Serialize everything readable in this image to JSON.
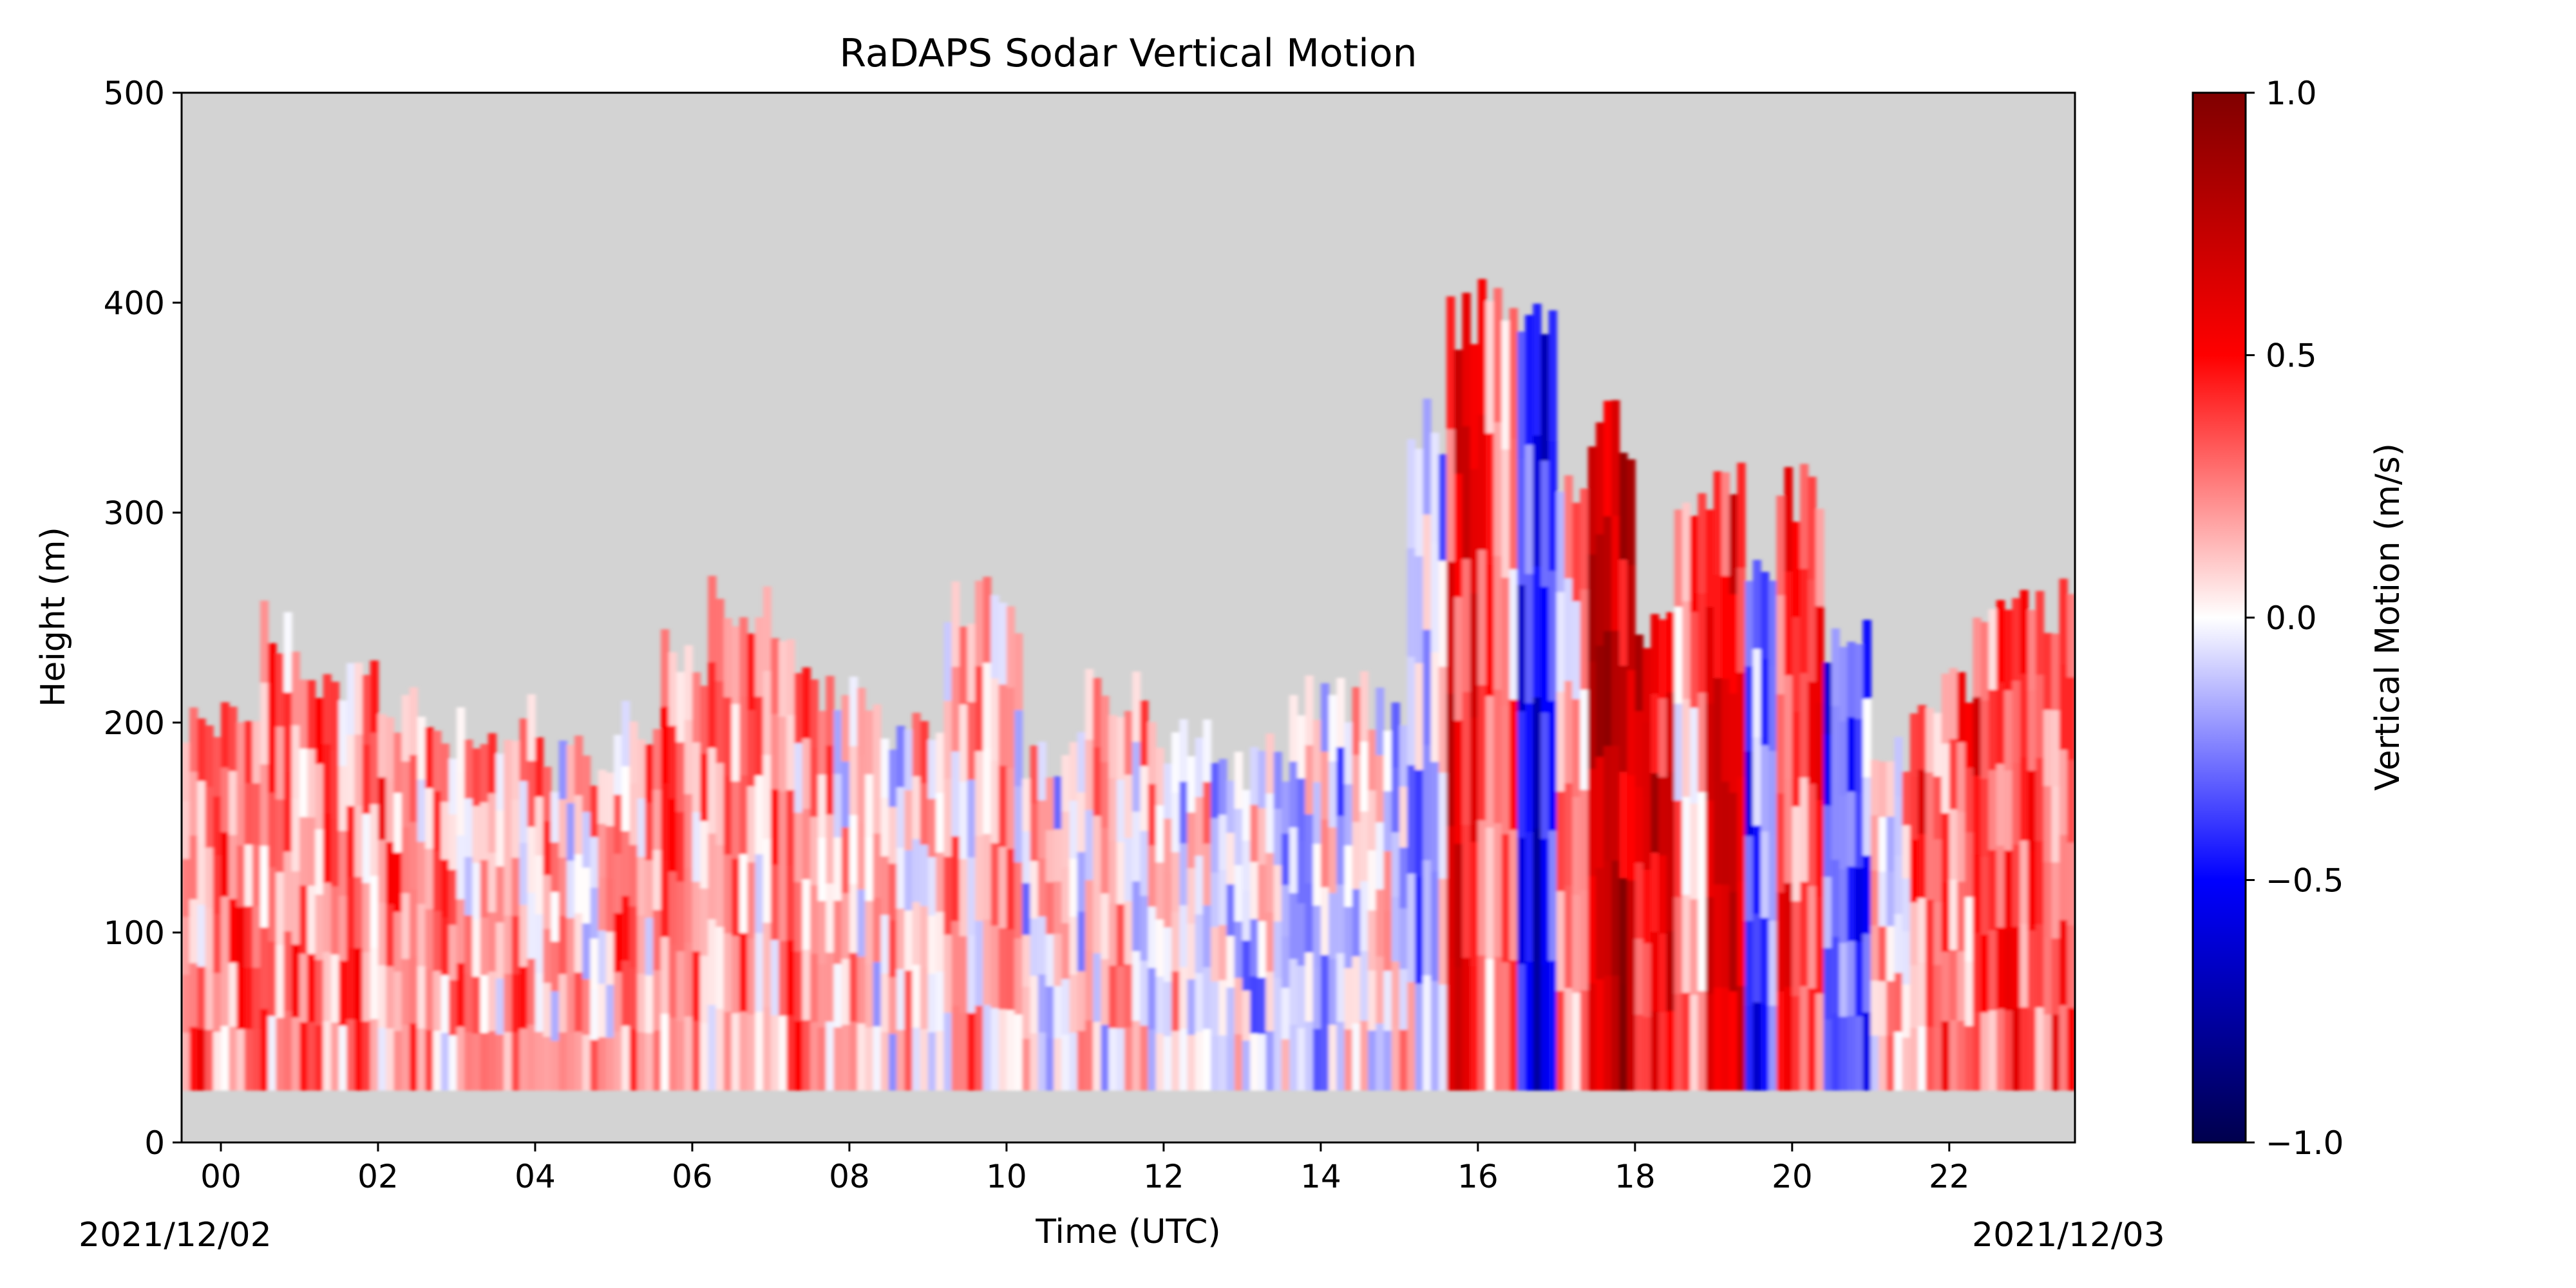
{
  "chart_data": {
    "type": "heatmap",
    "title": "RaDAPS Sodar Vertical Motion",
    "xlabel": "Time (UTC)",
    "ylabel": "Height (m)",
    "x_ticks": [
      "00",
      "02",
      "04",
      "06",
      "08",
      "10",
      "12",
      "14",
      "16",
      "18",
      "20",
      "22"
    ],
    "x_tick_hours": [
      0,
      2,
      4,
      6,
      8,
      10,
      12,
      14,
      16,
      18,
      20,
      22
    ],
    "xlim_hours": [
      -0.5,
      23.6
    ],
    "start_date": "2021/12/02",
    "end_date": "2021/12/03",
    "ylim": [
      0,
      500
    ],
    "y_ticks": [
      0,
      100,
      200,
      300,
      400,
      500
    ],
    "colorbar": {
      "label": "Vertical Motion (m/s)",
      "range": [
        -1.0,
        1.0
      ],
      "ticks": [
        1.0,
        0.5,
        0.0,
        -0.5,
        -1.0
      ],
      "tick_labels": [
        "1.0",
        "0.5",
        "0.0",
        "−0.5",
        "−1.0"
      ],
      "colormap": "seismic"
    },
    "height_bottom_m": 25,
    "missing_color": "#d3d3d3",
    "grid": false,
    "columns": [
      {
        "h0": -0.5,
        "h1": 0.5,
        "top": 200,
        "w": 0.25
      },
      {
        "h0": 0.5,
        "h1": 1.0,
        "top": 245,
        "w": 0.25
      },
      {
        "h0": 1.0,
        "h1": 2.0,
        "top": 225,
        "w": 0.25
      },
      {
        "h0": 2.0,
        "h1": 2.5,
        "top": 205,
        "w": 0.22
      },
      {
        "h0": 2.5,
        "h1": 3.5,
        "top": 195,
        "w": 0.18
      },
      {
        "h0": 3.5,
        "h1": 4.0,
        "top": 200,
        "w": 0.15
      },
      {
        "h0": 4.0,
        "h1": 5.0,
        "top": 180,
        "w": 0.1
      },
      {
        "h0": 5.0,
        "h1": 5.6,
        "top": 200,
        "w": 0.18
      },
      {
        "h0": 5.6,
        "h1": 6.2,
        "top": 230,
        "w": 0.22
      },
      {
        "h0": 6.2,
        "h1": 7.0,
        "top": 255,
        "w": 0.2
      },
      {
        "h0": 7.0,
        "h1": 7.6,
        "top": 235,
        "w": 0.18
      },
      {
        "h0": 7.6,
        "h1": 8.4,
        "top": 210,
        "w": 0.12
      },
      {
        "h0": 8.4,
        "h1": 9.2,
        "top": 190,
        "w": 0.05
      },
      {
        "h0": 9.2,
        "h1": 10.2,
        "top": 255,
        "w": 0.12
      },
      {
        "h0": 10.2,
        "h1": 11.0,
        "top": 185,
        "w": 0.03
      },
      {
        "h0": 11.0,
        "h1": 11.8,
        "top": 215,
        "w": 0.08
      },
      {
        "h0": 11.8,
        "h1": 12.6,
        "top": 190,
        "w": 0.04
      },
      {
        "h0": 12.6,
        "h1": 13.6,
        "top": 180,
        "w": -0.05
      },
      {
        "h0": 13.6,
        "h1": 14.4,
        "top": 215,
        "w": -0.08
      },
      {
        "h0": 14.4,
        "h1": 15.1,
        "top": 210,
        "w": 0.0
      },
      {
        "h0": 15.1,
        "h1": 15.6,
        "top": 340,
        "w": -0.12
      },
      {
        "h0": 15.6,
        "h1": 16.0,
        "top": 390,
        "w": 0.55
      },
      {
        "h0": 16.0,
        "h1": 16.5,
        "top": 400,
        "w": 0.3
      },
      {
        "h0": 16.5,
        "h1": 17.0,
        "top": 395,
        "w": -0.5
      },
      {
        "h0": 17.0,
        "h1": 17.4,
        "top": 310,
        "w": 0.15
      },
      {
        "h0": 17.4,
        "h1": 18.0,
        "top": 340,
        "w": 0.7
      },
      {
        "h0": 18.0,
        "h1": 18.5,
        "top": 250,
        "w": 0.55
      },
      {
        "h0": 18.5,
        "h1": 18.9,
        "top": 300,
        "w": 0.2
      },
      {
        "h0": 18.9,
        "h1": 19.4,
        "top": 315,
        "w": 0.55
      },
      {
        "h0": 19.4,
        "h1": 19.8,
        "top": 270,
        "w": -0.35
      },
      {
        "h0": 19.8,
        "h1": 20.4,
        "top": 310,
        "w": 0.4
      },
      {
        "h0": 20.4,
        "h1": 21.0,
        "top": 240,
        "w": -0.3
      },
      {
        "h0": 21.0,
        "h1": 21.5,
        "top": 180,
        "w": 0.05
      },
      {
        "h0": 21.5,
        "h1": 22.3,
        "top": 215,
        "w": 0.3
      },
      {
        "h0": 22.3,
        "h1": 23.6,
        "top": 255,
        "w": 0.35
      }
    ]
  }
}
